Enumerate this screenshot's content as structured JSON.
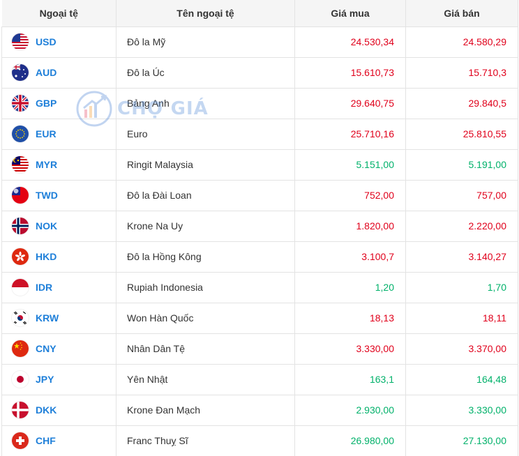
{
  "table": {
    "headers": [
      "Ngoại tệ",
      "Tên ngoại tệ",
      "Giá mua",
      "Giá bán"
    ],
    "rows": [
      {
        "code": "USD",
        "name": "Đô la Mỹ",
        "buy": "24.530,34",
        "sell": "24.580,29",
        "buy_color": "red",
        "sell_color": "red",
        "flag": "us-flag-icon"
      },
      {
        "code": "AUD",
        "name": "Đô la Úc",
        "buy": "15.610,73",
        "sell": "15.710,3",
        "buy_color": "red",
        "sell_color": "red",
        "flag": "au-flag-icon"
      },
      {
        "code": "GBP",
        "name": "Bảng Anh",
        "buy": "29.640,75",
        "sell": "29.840,5",
        "buy_color": "red",
        "sell_color": "red",
        "flag": "gb-flag-icon"
      },
      {
        "code": "EUR",
        "name": "Euro",
        "buy": "25.710,16",
        "sell": "25.810,55",
        "buy_color": "red",
        "sell_color": "red",
        "flag": "eu-flag-icon"
      },
      {
        "code": "MYR",
        "name": "Ringit Malaysia",
        "buy": "5.151,00",
        "sell": "5.191,00",
        "buy_color": "green",
        "sell_color": "green",
        "flag": "my-flag-icon"
      },
      {
        "code": "TWD",
        "name": "Đô la Đài Loan",
        "buy": "752,00",
        "sell": "757,00",
        "buy_color": "red",
        "sell_color": "red",
        "flag": "tw-flag-icon"
      },
      {
        "code": "NOK",
        "name": "Krone Na Uy",
        "buy": "1.820,00",
        "sell": "2.220,00",
        "buy_color": "red",
        "sell_color": "red",
        "flag": "no-flag-icon"
      },
      {
        "code": "HKD",
        "name": "Đô la Hồng Kông",
        "buy": "3.100,7",
        "sell": "3.140,27",
        "buy_color": "red",
        "sell_color": "red",
        "flag": "hk-flag-icon"
      },
      {
        "code": "IDR",
        "name": "Rupiah Indonesia",
        "buy": "1,20",
        "sell": "1,70",
        "buy_color": "green",
        "sell_color": "green",
        "flag": "id-flag-icon"
      },
      {
        "code": "KRW",
        "name": "Won Hàn Quốc",
        "buy": "18,13",
        "sell": "18,11",
        "buy_color": "red",
        "sell_color": "red",
        "flag": "kr-flag-icon"
      },
      {
        "code": "CNY",
        "name": "Nhân Dân Tệ",
        "buy": "3.330,00",
        "sell": "3.370,00",
        "buy_color": "red",
        "sell_color": "red",
        "flag": "cn-flag-icon"
      },
      {
        "code": "JPY",
        "name": "Yên Nhật",
        "buy": "163,1",
        "sell": "164,48",
        "buy_color": "green",
        "sell_color": "green",
        "flag": "jp-flag-icon"
      },
      {
        "code": "DKK",
        "name": "Krone Đan Mạch",
        "buy": "2.930,00",
        "sell": "3.330,00",
        "buy_color": "green",
        "sell_color": "green",
        "flag": "dk-flag-icon"
      },
      {
        "code": "CHF",
        "name": "Franc Thuỵ Sĩ",
        "buy": "26.980,00",
        "sell": "27.130,00",
        "buy_color": "green",
        "sell_color": "green",
        "flag": "ch-flag-icon"
      }
    ]
  },
  "watermark": {
    "text": "CHỢ GIÁ",
    "icon": "cho-gia-logo-icon"
  },
  "colors": {
    "red": "#e0001b",
    "green": "#00b16a",
    "code": "#1e7fd9",
    "header_bg": "#f5f5f5",
    "border": "#e3e3e3"
  }
}
